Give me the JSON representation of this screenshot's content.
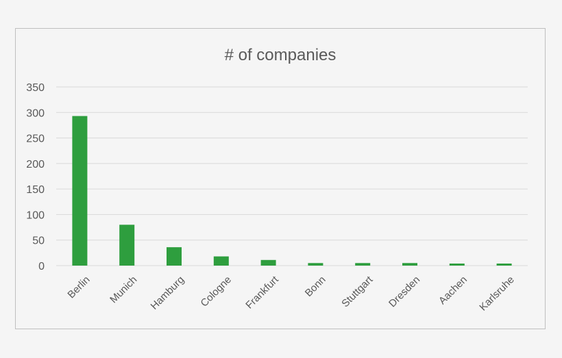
{
  "chart_data": {
    "type": "bar",
    "title": "# of companies",
    "categories": [
      "Berlin",
      "Munich",
      "Hamburg",
      "Cologne",
      "Frankfurt",
      "Bonn",
      "Stuttgart",
      "Dresden",
      "Aachen",
      "Karlsruhe"
    ],
    "values": [
      293,
      80,
      36,
      18,
      11,
      5,
      5,
      5,
      4,
      4
    ],
    "xlabel": "",
    "ylabel": "",
    "ylim": [
      0,
      350
    ],
    "yticks": [
      0,
      50,
      100,
      150,
      200,
      250,
      300,
      350
    ],
    "grid": true,
    "legend": "none",
    "bar_color": "#2e9e3e"
  }
}
